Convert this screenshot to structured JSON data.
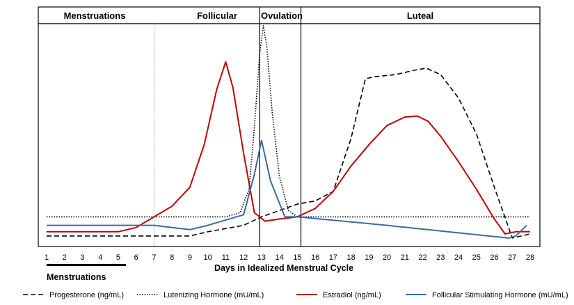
{
  "chart_data": {
    "type": "line",
    "title": "",
    "xlabel": "Days in Idealized Menstrual Cycle",
    "ylabel": "",
    "xlim": [
      1,
      28
    ],
    "ylim": [
      0,
      100
    ],
    "x_ticks": [
      1,
      2,
      3,
      4,
      5,
      6,
      7,
      8,
      9,
      10,
      11,
      12,
      13,
      14,
      15,
      16,
      17,
      18,
      19,
      20,
      21,
      22,
      23,
      24,
      25,
      26,
      27,
      28
    ],
    "phases": [
      "Menstruations",
      "Follicular",
      "Ovulation",
      "Luteal"
    ],
    "menstruation_bar_label": "Menstruations",
    "menstruation_bar_days": [
      1,
      5.3
    ],
    "dotted_marker_day": 7,
    "ovulation_start_day": 12.9,
    "ovulation_end_day": 15.2,
    "legend_position": "bottom",
    "grid": false,
    "series": [
      {
        "name": "Progesterone (ng/mL)",
        "color": "#000000",
        "style": "dashed",
        "points": [
          [
            1,
            2
          ],
          [
            5,
            2
          ],
          [
            9,
            2
          ],
          [
            10,
            4
          ],
          [
            12,
            7
          ],
          [
            13,
            11
          ],
          [
            14,
            14
          ],
          [
            15,
            17
          ],
          [
            16,
            18.5
          ],
          [
            17,
            23
          ],
          [
            18,
            48
          ],
          [
            18.8,
            76
          ],
          [
            19.3,
            77
          ],
          [
            20.5,
            78
          ],
          [
            21.5,
            80
          ],
          [
            22.2,
            81
          ],
          [
            23,
            78
          ],
          [
            24,
            67
          ],
          [
            25,
            50
          ],
          [
            26,
            25
          ],
          [
            27,
            1
          ],
          [
            28,
            3
          ]
        ]
      },
      {
        "name": "Lutenizing Hormone (mU/mL)",
        "color": "#000000",
        "style": "dotted",
        "points": [
          [
            1,
            11
          ],
          [
            10,
            11
          ],
          [
            11,
            11
          ],
          [
            11.8,
            13
          ],
          [
            12.3,
            24
          ],
          [
            12.6,
            53
          ],
          [
            12.9,
            88
          ],
          [
            13.1,
            101
          ],
          [
            13.3,
            91
          ],
          [
            13.6,
            60
          ],
          [
            14,
            30
          ],
          [
            14.5,
            14
          ],
          [
            15,
            11
          ],
          [
            28,
            11
          ]
        ]
      },
      {
        "name": "Estradiol (ng/mL)",
        "color": "#c00000",
        "style": "solid",
        "points": [
          [
            1,
            4
          ],
          [
            5,
            4
          ],
          [
            6,
            6
          ],
          [
            7,
            11
          ],
          [
            8,
            16
          ],
          [
            9,
            25
          ],
          [
            9.8,
            45
          ],
          [
            10.5,
            71
          ],
          [
            11,
            84
          ],
          [
            11.4,
            72
          ],
          [
            12,
            41
          ],
          [
            12.6,
            13
          ],
          [
            13.2,
            9
          ],
          [
            14,
            10
          ],
          [
            15,
            11
          ],
          [
            16,
            15
          ],
          [
            17,
            23
          ],
          [
            18,
            35
          ],
          [
            19,
            45
          ],
          [
            20,
            54
          ],
          [
            21,
            58
          ],
          [
            21.7,
            58.5
          ],
          [
            22.3,
            56
          ],
          [
            23,
            49
          ],
          [
            24,
            37
          ],
          [
            25,
            24
          ],
          [
            26,
            10
          ],
          [
            26.6,
            3
          ],
          [
            27.2,
            4
          ],
          [
            28,
            4
          ]
        ]
      },
      {
        "name": "Follicular Stimulating Hormone (mU/mL)",
        "color": "#3b6aa0",
        "style": "solid",
        "points": [
          [
            1,
            7
          ],
          [
            5,
            7
          ],
          [
            7,
            7
          ],
          [
            9,
            5
          ],
          [
            10,
            7
          ],
          [
            12,
            12
          ],
          [
            12.6,
            31
          ],
          [
            13,
            47
          ],
          [
            13.5,
            28
          ],
          [
            14.3,
            11
          ],
          [
            15,
            11
          ],
          [
            20,
            7
          ],
          [
            26.8,
            1
          ],
          [
            27.2,
            2
          ],
          [
            27.8,
            7
          ]
        ]
      }
    ]
  }
}
